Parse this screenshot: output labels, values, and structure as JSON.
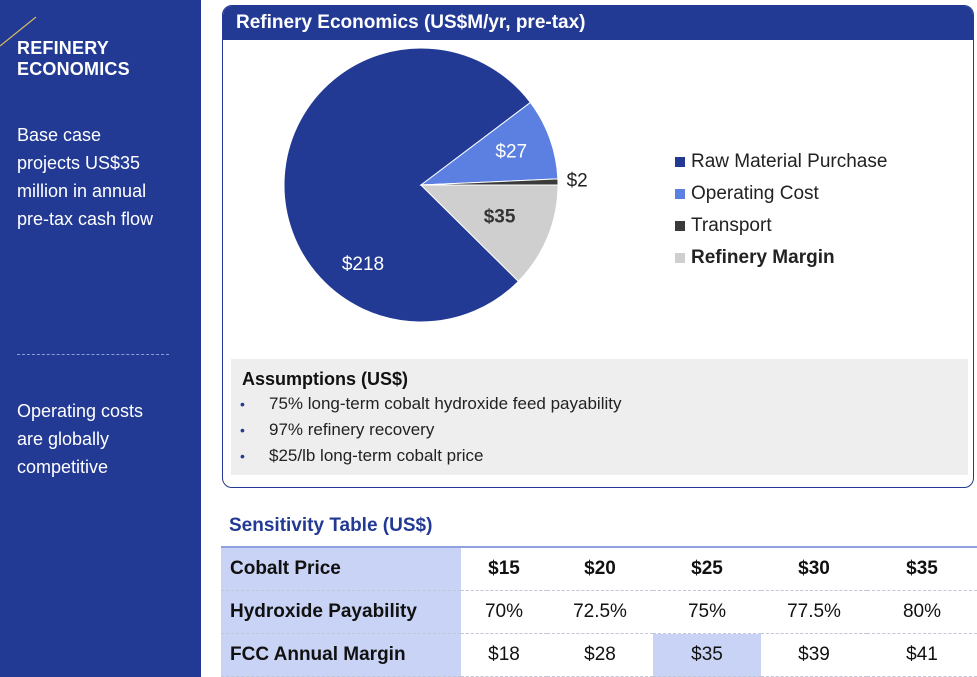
{
  "sidebar": {
    "title_line1": "REFINERY",
    "title_line2": "ECONOMICS",
    "text1_lines": [
      "Base case",
      "projects US$35",
      "million in annual",
      "pre-tax cash flow"
    ],
    "text2_lines": [
      "Operating costs",
      "are globally",
      "competitive"
    ]
  },
  "panel": {
    "title": "Refinery Economics (US$M/yr, pre-tax)"
  },
  "chart_data": {
    "type": "pie",
    "title": "Refinery Economics (US$M/yr, pre-tax)",
    "slices": [
      {
        "name": "Raw Material Purchase",
        "value": 218,
        "label": "$218",
        "color": "#223a94",
        "label_color": "#ffffff",
        "bold": false
      },
      {
        "name": "Operating Cost",
        "value": 27,
        "label": "$27",
        "color": "#5b80e2",
        "label_color": "#ffffff",
        "bold": false
      },
      {
        "name": "Transport",
        "value": 2,
        "label": "$2",
        "color": "#3a3a3a",
        "label_color": "#222222",
        "bold": false
      },
      {
        "name": "Refinery Margin",
        "value": 35,
        "label": "$35",
        "color": "#cfcfcf",
        "label_color": "#333333",
        "bold": true
      }
    ],
    "legend_position": "right"
  },
  "assumptions": {
    "title": "Assumptions (US$)",
    "items": [
      "75% long-term cobalt hydroxide feed payability",
      "97% refinery recovery",
      "$25/lb long-term cobalt price"
    ]
  },
  "sensitivity": {
    "title": "Sensitivity Table (US$)",
    "rows": [
      {
        "label": "Cobalt Price",
        "values": [
          "$15",
          "$20",
          "$25",
          "$30",
          "$35"
        ]
      },
      {
        "label": "Hydroxide Payability",
        "values": [
          "70%",
          "72.5%",
          "75%",
          "77.5%",
          "80%"
        ]
      },
      {
        "label": "FCC Annual Margin",
        "values": [
          "$18",
          "$28",
          "$35",
          "$39",
          "$41"
        ]
      }
    ],
    "highlight_color": "#c9d3f5"
  },
  "colors": {
    "brand": "#223a94",
    "panel_bg": "#eeeeee"
  }
}
